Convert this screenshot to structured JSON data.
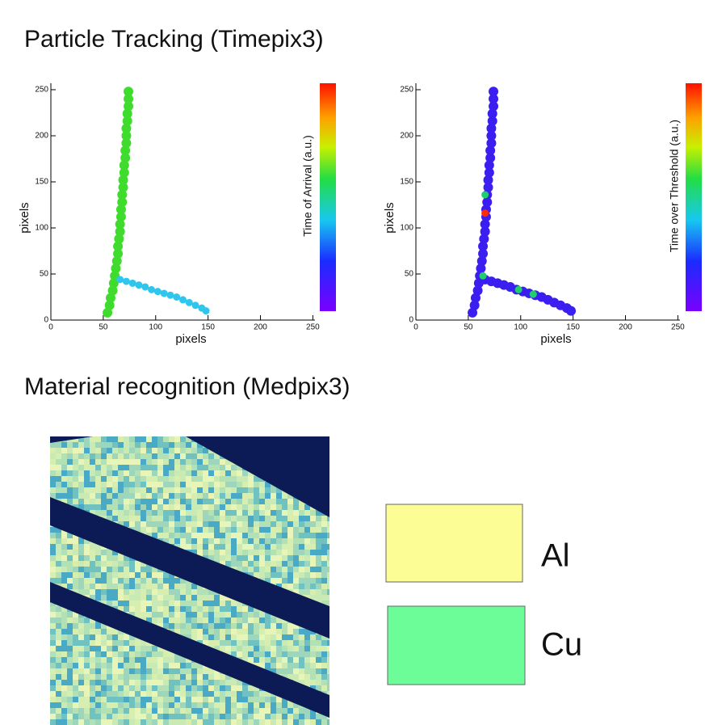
{
  "slide": {
    "title": "Particle Tracking (Timepix3)",
    "subtitle": "Material recognition (Medpix3)",
    "legend": [
      "Al",
      "Cu"
    ]
  },
  "chart_data": [
    {
      "type": "scatter",
      "xlabel": "pixels",
      "ylabel": "pixels",
      "colorbar_label": "Time of Arrival (a.u.)",
      "xlim": [
        0,
        252
      ],
      "ylim": [
        0,
        257
      ],
      "xticks": [
        0,
        50,
        100,
        150,
        200,
        250
      ],
      "yticks": [
        0,
        50,
        100,
        150,
        200,
        250
      ],
      "series": [
        {
          "color": "#3fdc2e",
          "x": [
            54,
            56,
            57,
            59,
            60,
            61,
            62,
            63,
            64,
            64,
            65,
            66,
            66,
            67,
            67,
            68,
            68,
            69,
            69,
            70,
            70,
            71,
            71,
            72,
            72,
            72,
            73,
            73,
            74,
            74,
            74
          ],
          "y": [
            8,
            16,
            24,
            32,
            40,
            48,
            56,
            64,
            72,
            80,
            88,
            96,
            104,
            112,
            120,
            128,
            136,
            144,
            152,
            160,
            168,
            176,
            184,
            192,
            200,
            208,
            216,
            224,
            232,
            240,
            248
          ]
        },
        {
          "color": "#2fc6ee",
          "x": [
            66,
            72,
            78,
            84,
            90,
            96,
            102,
            108,
            114,
            120,
            126,
            132,
            138,
            144,
            148
          ],
          "y": [
            44,
            42,
            40,
            38,
            36,
            33,
            31,
            29,
            27,
            25,
            22,
            19,
            16,
            13,
            10
          ]
        }
      ]
    },
    {
      "type": "scatter",
      "xlabel": "pixels",
      "ylabel": "pixels",
      "colorbar_label": "Time over Threshold (a.u.)",
      "xlim": [
        0,
        252
      ],
      "ylim": [
        0,
        257
      ],
      "xticks": [
        0,
        50,
        100,
        150,
        200,
        250
      ],
      "yticks": [
        0,
        50,
        100,
        150,
        200,
        250
      ],
      "series": [
        {
          "color": "#3a1ff0",
          "x": [
            54,
            56,
            57,
            59,
            60,
            61,
            62,
            63,
            64,
            64,
            65,
            66,
            66,
            67,
            67,
            68,
            68,
            69,
            69,
            70,
            70,
            71,
            71,
            72,
            72,
            72,
            73,
            73,
            74,
            74,
            74,
            66,
            72,
            78,
            84,
            90,
            96,
            102,
            108,
            114,
            120,
            126,
            132,
            138,
            144,
            148
          ],
          "y": [
            8,
            16,
            24,
            32,
            40,
            48,
            56,
            64,
            72,
            80,
            88,
            96,
            104,
            112,
            120,
            128,
            136,
            144,
            152,
            160,
            168,
            176,
            184,
            192,
            200,
            208,
            216,
            224,
            232,
            240,
            248,
            44,
            42,
            40,
            38,
            36,
            33,
            31,
            29,
            27,
            25,
            22,
            19,
            16,
            13,
            10
          ]
        },
        {
          "color": "#1fcf6a",
          "x": [
            64,
            98,
            112,
            66
          ],
          "y": [
            48,
            33,
            28,
            136
          ]
        },
        {
          "color": "#ff2a00",
          "x": [
            66
          ],
          "y": [
            116
          ]
        }
      ]
    }
  ]
}
